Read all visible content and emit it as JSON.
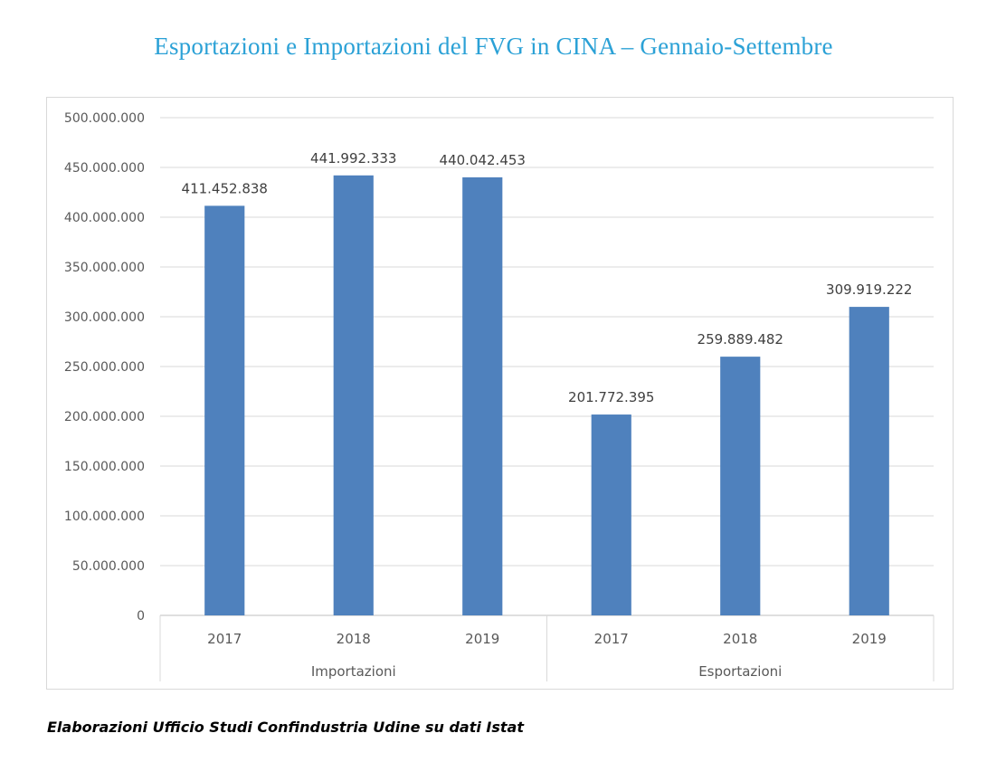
{
  "title": "Esportazioni e Importazioni del FVG in CINA – Gennaio-Settembre",
  "footer": "Elaborazioni Ufficio Studi Confindustria Udine su dati Istat",
  "colors": {
    "title": "#2ba1d6",
    "bar": "#4f81bd",
    "grid": "#d9d9d9"
  },
  "chart_data": {
    "type": "bar",
    "title": "Esportazioni e Importazioni del FVG in CINA – Gennaio-Settembre",
    "xlabel": "",
    "ylabel": "",
    "ylim": [
      0,
      500000000
    ],
    "ytick_step": 50000000,
    "y_tick_labels": [
      "0",
      "50.000.000",
      "100.000.000",
      "150.000.000",
      "200.000.000",
      "250.000.000",
      "300.000.000",
      "350.000.000",
      "400.000.000",
      "450.000.000",
      "500.000.000"
    ],
    "grid": true,
    "legend": "none",
    "groups": [
      {
        "label": "Importazioni",
        "categories": [
          "2017",
          "2018",
          "2019"
        ],
        "values": [
          411452838,
          441992333,
          440042453
        ],
        "value_labels": [
          "411.452.838",
          "441.992.333",
          "440.042.453"
        ]
      },
      {
        "label": "Esportazioni",
        "categories": [
          "2017",
          "2018",
          "2019"
        ],
        "values": [
          201772395,
          259889482,
          309919222
        ],
        "value_labels": [
          "201.772.395",
          "259.889.482",
          "309.919.222"
        ]
      }
    ]
  }
}
